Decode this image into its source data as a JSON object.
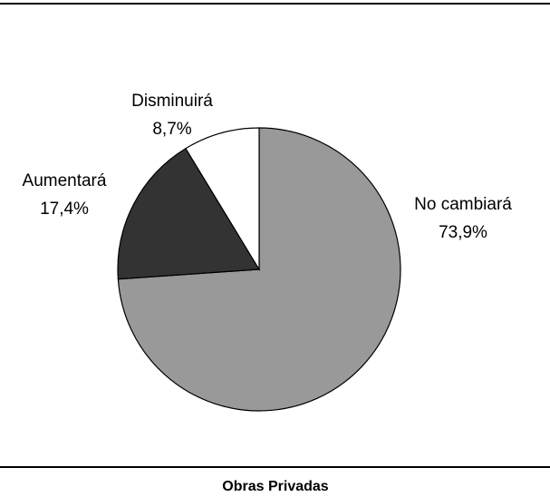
{
  "chart_data": {
    "type": "pie",
    "title": "Obras Privadas",
    "categories": [
      "No cambiará",
      "Aumentará",
      "Disminuirá"
    ],
    "values": [
      73.9,
      17.4,
      8.7
    ],
    "value_labels": [
      "73,9%",
      "17,4%",
      "8,7%"
    ],
    "colors": [
      "#999999",
      "#333333",
      "#ffffff"
    ]
  }
}
